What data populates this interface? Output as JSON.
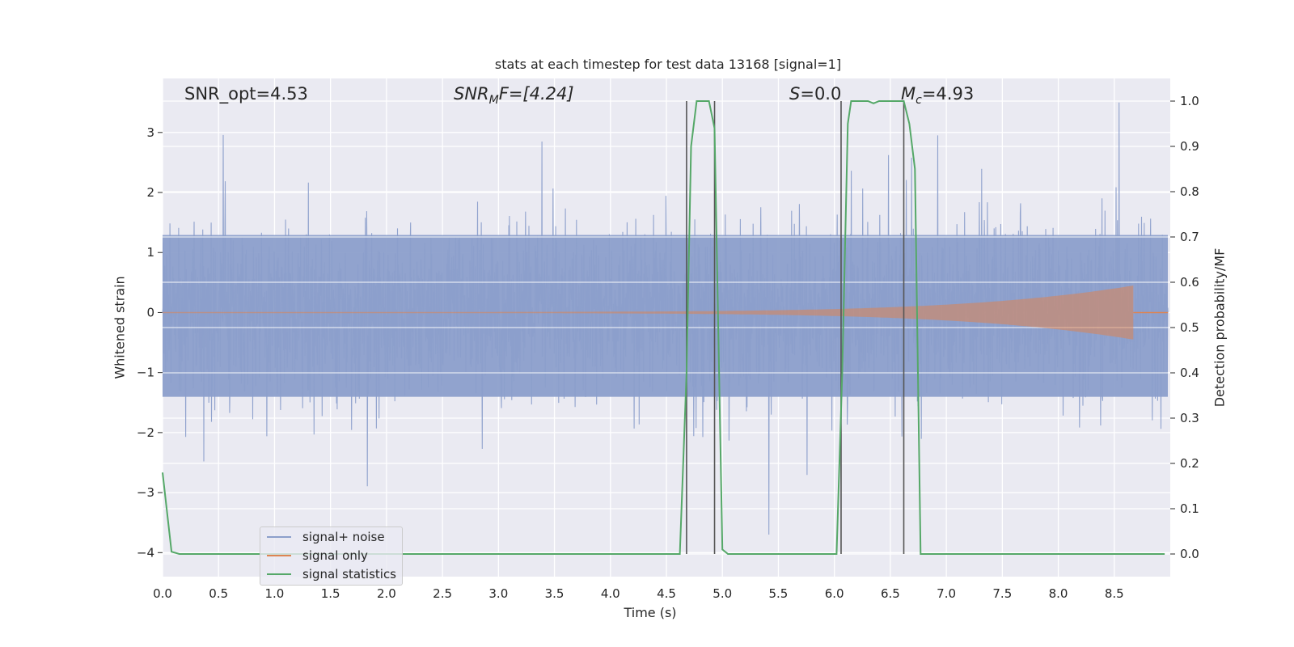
{
  "chart_data": {
    "type": "line",
    "title": "stats at each timestep for test data 13168 [signal=1]",
    "xlabel": "Time (s)",
    "ylabel_left": "Whitened strain",
    "ylabel_right": "Detection probability/MF",
    "xlim": [
      0,
      9
    ],
    "ylim_left": [
      -4.4,
      3.9
    ],
    "ylim_right": [
      -0.05,
      1.05
    ],
    "x_ticks": [
      "0.0",
      "0.5",
      "1.0",
      "1.5",
      "2.0",
      "2.5",
      "3.0",
      "3.5",
      "4.0",
      "4.5",
      "5.0",
      "5.5",
      "6.0",
      "6.5",
      "7.0",
      "7.5",
      "8.0",
      "8.5"
    ],
    "y_ticks_left": [
      "3",
      "2",
      "1",
      "0",
      "−1",
      "−2",
      "−3",
      "−4"
    ],
    "y_ticks_right": [
      "1.0",
      "0.9",
      "0.8",
      "0.7",
      "0.6",
      "0.5",
      "0.4",
      "0.3",
      "0.2",
      "0.1",
      "0.0"
    ],
    "grid": true,
    "legend_position": "lower-left",
    "annotations": {
      "snr_opt": "SNR_opt=4.53",
      "snr_mf_label": "SNR",
      "snr_mf_sub": "M",
      "snr_mf_rest": "F=[4.24]",
      "s_label": "S",
      "s_rest": "=0.0",
      "mc_label": "M",
      "mc_sub": "c",
      "mc_rest": "=4.93"
    },
    "series": [
      {
        "name": "signal+ noise",
        "color": "#8c9fcb",
        "kind": "noise",
        "typical_range": [
          -1.8,
          1.9
        ],
        "extreme_range": [
          -3.7,
          3.5
        ]
      },
      {
        "name": "signal only",
        "color": "#dd8452",
        "kind": "chirp",
        "x_start": 0.0,
        "x_end": 8.67,
        "amplitude_start": 0.01,
        "amplitude_end": 0.45
      },
      {
        "name": "signal statistics",
        "color": "#55a868",
        "axis": "right",
        "x": [
          0.0,
          0.08,
          0.15,
          4.62,
          4.68,
          4.72,
          4.77,
          4.88,
          4.93,
          5.0,
          5.05,
          5.1,
          6.02,
          6.07,
          6.12,
          6.15,
          6.3,
          6.35,
          6.4,
          6.62,
          6.67,
          6.72,
          6.77,
          8.95
        ],
        "y": [
          0.18,
          0.005,
          0.0,
          0.0,
          0.4,
          0.9,
          1.0,
          1.0,
          0.94,
          0.01,
          0.0,
          0.0,
          0.0,
          0.4,
          0.95,
          1.0,
          1.0,
          0.995,
          1.0,
          1.0,
          0.95,
          0.85,
          0.0,
          0.0
        ]
      }
    ],
    "vertical_lines": [
      4.68,
      4.93,
      6.06,
      6.62
    ],
    "vertical_line_color": "#555555"
  }
}
